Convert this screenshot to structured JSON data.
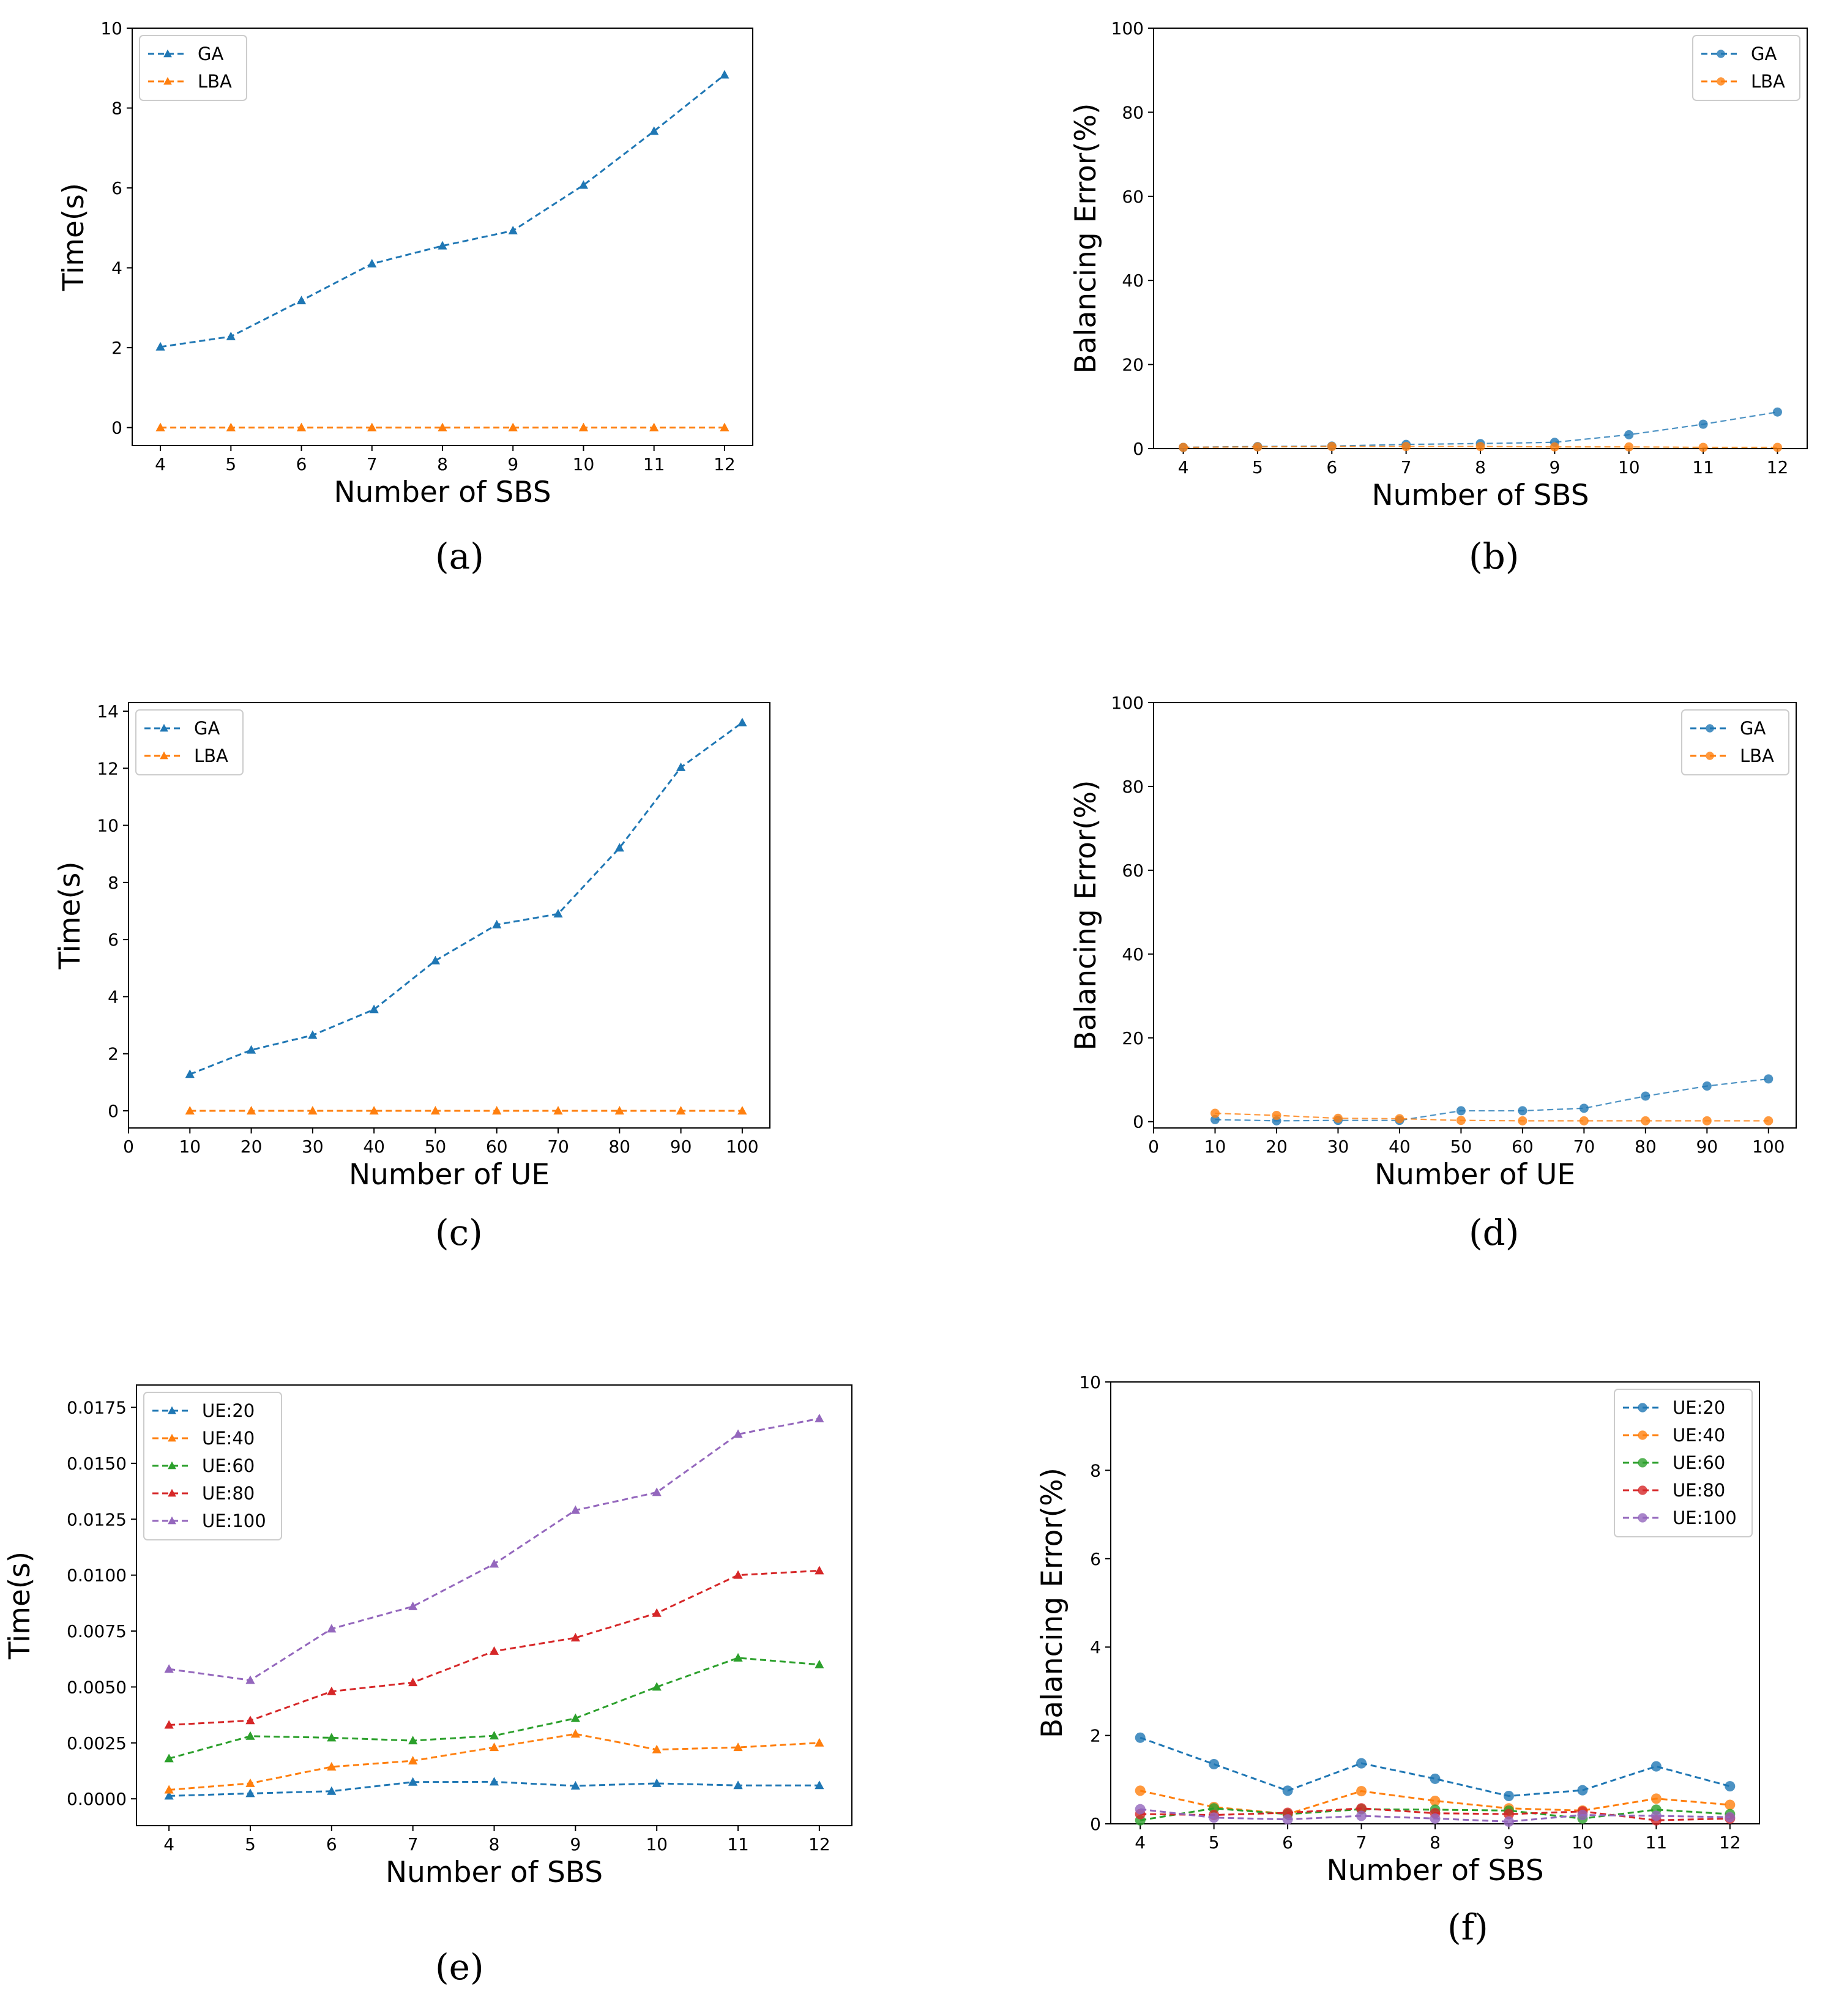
{
  "colors": {
    "GA": "#1f77b4",
    "LBA": "#ff7f0e",
    "UE20": "#1f77b4",
    "UE40": "#ff7f0e",
    "UE60": "#2ca02c",
    "UE80": "#d62728",
    "UE100": "#9467bd"
  },
  "captions": {
    "a": "(a)",
    "b": "(b)",
    "c": "(c)",
    "d": "(d)",
    "e": "(e)",
    "f": "(f)"
  },
  "chart_data": [
    {
      "id": "a",
      "type": "line",
      "xlabel": "Number of SBS",
      "ylabel": "Time(s)",
      "x": [
        4,
        5,
        6,
        7,
        8,
        9,
        10,
        11,
        12
      ],
      "xlim": [
        3.6,
        12.4
      ],
      "ylim": [
        -0.45,
        10
      ],
      "xticks": [
        4,
        5,
        6,
        7,
        8,
        9,
        10,
        11,
        12
      ],
      "yticks": [
        0,
        2,
        4,
        6,
        8,
        10
      ],
      "ytick_labels": [
        "0",
        "2",
        "4",
        "6",
        "8",
        "10"
      ],
      "legend": "top-left",
      "marker": "triangle",
      "series": [
        {
          "name": "GA",
          "color": "#1f77b4",
          "values": [
            2.02,
            2.28,
            3.18,
            4.1,
            4.55,
            4.93,
            6.07,
            7.42,
            8.83
          ]
        },
        {
          "name": "LBA",
          "color": "#ff7f0e",
          "values": [
            0.0,
            0.0,
            0.0,
            0.0,
            0.0,
            0.0,
            0.0,
            0.0,
            0.0
          ]
        }
      ]
    },
    {
      "id": "b",
      "type": "line",
      "xlabel": "Number of SBS",
      "ylabel": "Balancing Error(%)",
      "x": [
        4,
        5,
        6,
        7,
        8,
        9,
        10,
        11,
        12
      ],
      "xlim": [
        3.6,
        12.4
      ],
      "ylim": [
        0,
        100
      ],
      "xticks": [
        4,
        5,
        6,
        7,
        8,
        9,
        10,
        11,
        12
      ],
      "yticks": [
        0,
        20,
        40,
        60,
        80,
        100
      ],
      "ytick_labels": [
        "0",
        "20",
        "40",
        "60",
        "80",
        "100"
      ],
      "legend": "top-right",
      "marker": "circle",
      "thin": true,
      "series": [
        {
          "name": "GA",
          "color": "#1f77b4",
          "values": [
            0.3,
            0.5,
            0.6,
            1.0,
            1.2,
            1.5,
            3.3,
            5.8,
            8.7
          ]
        },
        {
          "name": "LBA",
          "color": "#ff7f0e",
          "values": [
            0.3,
            0.4,
            0.5,
            0.5,
            0.5,
            0.4,
            0.4,
            0.3,
            0.3
          ]
        }
      ]
    },
    {
      "id": "c",
      "type": "line",
      "xlabel": "Number of UE",
      "ylabel": "Time(s)",
      "x": [
        10,
        20,
        30,
        40,
        50,
        60,
        70,
        80,
        90,
        100
      ],
      "xlim": [
        0,
        104.5
      ],
      "ylim": [
        -0.6,
        14.3
      ],
      "xticks": [
        0,
        10,
        20,
        30,
        40,
        50,
        60,
        70,
        80,
        90,
        100
      ],
      "yticks": [
        0,
        2,
        4,
        6,
        8,
        10,
        12,
        14
      ],
      "ytick_labels": [
        "0",
        "2",
        "4",
        "6",
        "8",
        "10",
        "12",
        "14"
      ],
      "legend": "top-left",
      "marker": "triangle",
      "series": [
        {
          "name": "GA",
          "color": "#1f77b4",
          "values": [
            1.28,
            2.13,
            2.65,
            3.55,
            5.26,
            6.52,
            6.9,
            9.21,
            12.03,
            13.6
          ]
        },
        {
          "name": "LBA",
          "color": "#ff7f0e",
          "values": [
            0.0,
            0.0,
            0.0,
            0.0,
            0.0,
            0.0,
            0.0,
            0.0,
            0.0,
            0.0
          ]
        }
      ]
    },
    {
      "id": "d",
      "type": "line",
      "xlabel": "Number of UE",
      "ylabel": "Balancing Error(%)",
      "x": [
        10,
        20,
        30,
        40,
        50,
        60,
        70,
        80,
        90,
        100
      ],
      "xlim": [
        0,
        104.5
      ],
      "ylim": [
        -1.5,
        100
      ],
      "xticks": [
        0,
        10,
        20,
        30,
        40,
        50,
        60,
        70,
        80,
        90,
        100
      ],
      "yticks": [
        0,
        20,
        40,
        60,
        80,
        100
      ],
      "ytick_labels": [
        "0",
        "20",
        "40",
        "60",
        "80",
        "100"
      ],
      "legend": "top-right",
      "marker": "circle",
      "thin": true,
      "series": [
        {
          "name": "GA",
          "color": "#1f77b4",
          "values": [
            0.5,
            0.2,
            0.3,
            0.3,
            2.6,
            2.6,
            3.2,
            6.1,
            8.5,
            10.2
          ]
        },
        {
          "name": "LBA",
          "color": "#ff7f0e",
          "values": [
            2.0,
            1.5,
            0.8,
            0.7,
            0.3,
            0.2,
            0.2,
            0.2,
            0.2,
            0.2
          ]
        }
      ]
    },
    {
      "id": "e",
      "type": "line",
      "xlabel": "Number of SBS",
      "ylabel": "Time(s)",
      "x": [
        4,
        5,
        6,
        7,
        8,
        9,
        10,
        11,
        12
      ],
      "xlim": [
        3.6,
        12.4
      ],
      "ylim": [
        -0.0012,
        0.0185
      ],
      "xticks": [
        4,
        5,
        6,
        7,
        8,
        9,
        10,
        11,
        12
      ],
      "yticks": [
        0,
        0.0025,
        0.005,
        0.0075,
        0.01,
        0.0125,
        0.015,
        0.0175
      ],
      "ytick_labels": [
        "0.0000",
        "0.0025",
        "0.0050",
        "0.0075",
        "0.0100",
        "0.0125",
        "0.0150",
        "0.0175"
      ],
      "legend": "top-left",
      "marker": "triangle",
      "series": [
        {
          "name": "UE:20",
          "color": "#1f77b4",
          "values": [
            0.00013,
            0.00024,
            0.00034,
            0.00075,
            0.00076,
            0.00058,
            0.00069,
            0.0006,
            0.0006
          ]
        },
        {
          "name": "UE:40",
          "color": "#ff7f0e",
          "values": [
            0.0004,
            0.00069,
            0.00143,
            0.0017,
            0.0023,
            0.0029,
            0.0022,
            0.0023,
            0.0025
          ]
        },
        {
          "name": "UE:60",
          "color": "#2ca02c",
          "values": [
            0.0018,
            0.0028,
            0.00273,
            0.0026,
            0.00282,
            0.0036,
            0.005,
            0.0063,
            0.006
          ]
        },
        {
          "name": "UE:80",
          "color": "#d62728",
          "values": [
            0.0033,
            0.0035,
            0.0048,
            0.0052,
            0.0066,
            0.0072,
            0.0083,
            0.01,
            0.0102
          ]
        },
        {
          "name": "UE:100",
          "color": "#9467bd",
          "values": [
            0.0058,
            0.0053,
            0.0076,
            0.0086,
            0.0105,
            0.0129,
            0.0137,
            0.0163,
            0.017
          ]
        }
      ]
    },
    {
      "id": "f",
      "type": "line",
      "xlabel": "Number of SBS",
      "ylabel": "Balancing Error(%)",
      "x": [
        4,
        5,
        6,
        7,
        8,
        9,
        10,
        11,
        12
      ],
      "xlim": [
        3.6,
        12.4
      ],
      "ylim": [
        0,
        10
      ],
      "xticks": [
        4,
        5,
        6,
        7,
        8,
        9,
        10,
        11,
        12
      ],
      "yticks": [
        0,
        2,
        4,
        6,
        8,
        10
      ],
      "ytick_labels": [
        "0",
        "2",
        "4",
        "6",
        "8",
        "10"
      ],
      "legend": "top-right",
      "marker": "circle",
      "series": [
        {
          "name": "UE:20",
          "color": "#1f77b4",
          "values": [
            1.95,
            1.35,
            0.75,
            1.37,
            1.02,
            0.63,
            0.76,
            1.3,
            0.85
          ]
        },
        {
          "name": "UE:40",
          "color": "#ff7f0e",
          "values": [
            0.75,
            0.38,
            0.22,
            0.74,
            0.52,
            0.35,
            0.3,
            0.57,
            0.43
          ]
        },
        {
          "name": "UE:60",
          "color": "#2ca02c",
          "values": [
            0.08,
            0.35,
            0.22,
            0.33,
            0.32,
            0.3,
            0.12,
            0.32,
            0.22
          ]
        },
        {
          "name": "UE:80",
          "color": "#d62728",
          "values": [
            0.22,
            0.2,
            0.25,
            0.35,
            0.24,
            0.22,
            0.28,
            0.08,
            0.12
          ]
        },
        {
          "name": "UE:100",
          "color": "#9467bd",
          "values": [
            0.33,
            0.14,
            0.1,
            0.18,
            0.12,
            0.05,
            0.2,
            0.18,
            0.15
          ]
        }
      ]
    }
  ]
}
